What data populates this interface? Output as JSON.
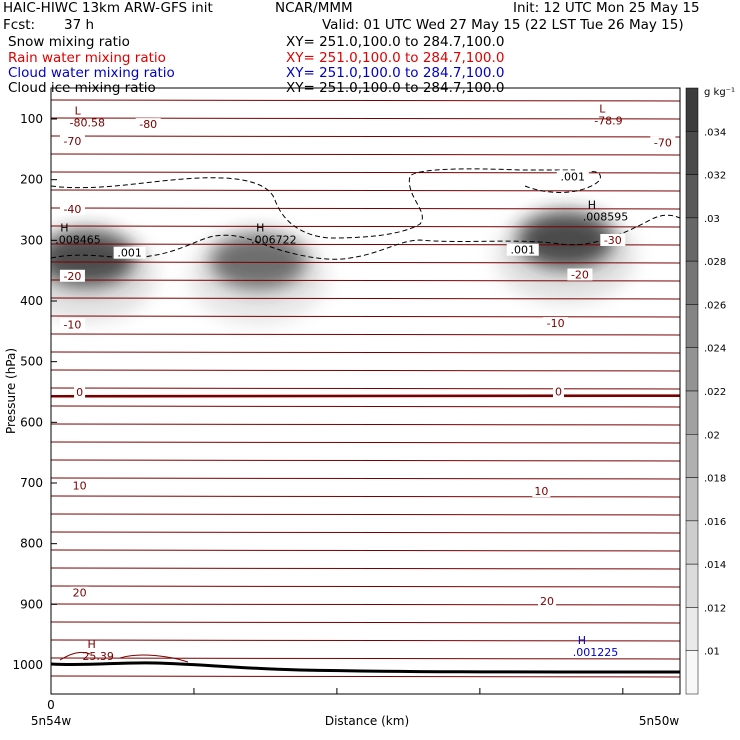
{
  "header": {
    "model": "HAIC-HIWC 13km ARW-GFS init",
    "org": "NCAR/MMM",
    "init": "Init: 12 UTC Mon 25 May 15",
    "fcst_label": "Fcst:",
    "fcst_value": "37 h",
    "valid": "Valid: 01 UTC Wed 27 May 15 (22 LST Tue 26 May 15)"
  },
  "fields": [
    {
      "name": "Snow mixing ratio",
      "xy": "XY= 251.0,100.0 to 284.7,100.0",
      "color": "#000000"
    },
    {
      "name": "Rain water mixing ratio",
      "xy": "XY= 251.0,100.0 to 284.7,100.0",
      "color": "#e00000"
    },
    {
      "name": "Cloud water mixing ratio",
      "xy": "XY= 251.0,100.0 to 284.7,100.0",
      "color": "#0000c8"
    },
    {
      "name": "Cloud ice mixing ratio",
      "xy": "XY= 251.0,100.0 to 284.7,100.0",
      "color": "#000000"
    }
  ],
  "colors": {
    "temperature_contour": "#7a0000",
    "blue_label": "#0000c8",
    "shading": "#333333"
  },
  "chart_data": {
    "type": "cross-section",
    "xlabel": "Distance (km)",
    "ylabel": "Pressure (hPa)",
    "x_tick_labels": [
      "0"
    ],
    "x_end_labels": {
      "left": "5n54w",
      "right": "5n50w"
    },
    "xlim": [
      0,
      4.4
    ],
    "ylim": [
      1050,
      50
    ],
    "y_ticks": [
      100,
      200,
      300,
      400,
      500,
      600,
      700,
      800,
      900,
      1000
    ],
    "colorbar": {
      "unit": "g kg⁻¹",
      "ticks": [
        ".01",
        ".012",
        ".014",
        ".016",
        ".018",
        ".02",
        ".022",
        ".024",
        ".026",
        ".028",
        ".03",
        ".032",
        ".034"
      ]
    },
    "temperature_labels": [
      {
        "text": "-80",
        "x": 0.68,
        "p": 115
      },
      {
        "text": "-70",
        "x": 0.15,
        "p": 143
      },
      {
        "text": "-70",
        "x": 4.28,
        "p": 145
      },
      {
        "text": "-40",
        "x": 0.15,
        "p": 255
      },
      {
        "text": "-30",
        "x": 3.93,
        "p": 306
      },
      {
        "text": "-20",
        "x": 0.15,
        "p": 365
      },
      {
        "text": "-20",
        "x": 3.7,
        "p": 363
      },
      {
        "text": "-10",
        "x": 0.15,
        "p": 445
      },
      {
        "text": "-10",
        "x": 3.53,
        "p": 443
      },
      {
        "text": "0",
        "x": 0.2,
        "p": 557
      },
      {
        "text": "0",
        "x": 3.55,
        "p": 556
      },
      {
        "text": "10",
        "x": 0.2,
        "p": 711
      },
      {
        "text": "10",
        "x": 3.43,
        "p": 720
      },
      {
        "text": "20",
        "x": 0.2,
        "p": 887
      },
      {
        "text": "20",
        "x": 3.47,
        "p": 901
      }
    ],
    "extrema": [
      {
        "kind": "L",
        "value": "-80.58",
        "x": 0.13,
        "p": 112,
        "color": "#7a0000"
      },
      {
        "kind": "L",
        "value": "-78.9",
        "x": 3.8,
        "p": 109,
        "color": "#7a0000"
      },
      {
        "kind": "H",
        "value": ".008465",
        "x": 0.03,
        "p": 305,
        "color": "#000000"
      },
      {
        "kind": "H",
        "value": ".006722",
        "x": 1.4,
        "p": 305,
        "color": "#000000"
      },
      {
        "kind": "H",
        "value": ".008595",
        "x": 3.72,
        "p": 267,
        "color": "#000000"
      },
      {
        "kind": "H",
        "value": "25.39",
        "x": 0.22,
        "p": 992,
        "color": "#7a0000"
      },
      {
        "kind": "H",
        "value": ".001225",
        "x": 3.65,
        "p": 985,
        "color": "#0000c8"
      }
    ],
    "ice_contour_labels": [
      {
        "text": ".001",
        "x": 0.55,
        "p": 327
      },
      {
        "text": ".001",
        "x": 3.65,
        "p": 201
      },
      {
        "text": ".001",
        "x": 3.3,
        "p": 322
      }
    ],
    "snow_maxima": [
      {
        "x": 0.25,
        "p": 330,
        "value": 0.0085
      },
      {
        "x": 1.45,
        "p": 335,
        "value": 0.0067
      },
      {
        "x": 3.6,
        "p": 300,
        "value": 0.0086
      }
    ]
  }
}
